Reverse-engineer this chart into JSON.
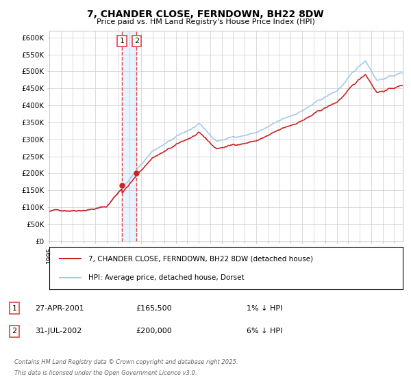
{
  "title": "7, CHANDER CLOSE, FERNDOWN, BH22 8DW",
  "subtitle": "Price paid vs. HM Land Registry's House Price Index (HPI)",
  "ylim": [
    0,
    620000
  ],
  "yticks": [
    0,
    50000,
    100000,
    150000,
    200000,
    250000,
    300000,
    350000,
    400000,
    450000,
    500000,
    550000,
    600000
  ],
  "xlim_start": 1995,
  "xlim_end": 2025.75,
  "hpi_color": "#a8c8e8",
  "price_color": "#cc2222",
  "vline_color": "#dd4444",
  "vfill_color": "#ddeeff",
  "legend_label_price": "7, CHANDER CLOSE, FERNDOWN, BH22 8DW (detached house)",
  "legend_label_hpi": "HPI: Average price, detached house, Dorset",
  "sale1_label": "1",
  "sale1_date": "27-APR-2001",
  "sale1_price": "£165,500",
  "sale1_note": "1% ↓ HPI",
  "sale1_year": 2001.32,
  "sale1_value": 165500,
  "sale2_label": "2",
  "sale2_date": "31-JUL-2002",
  "sale2_price": "£200,000",
  "sale2_note": "6% ↓ HPI",
  "sale2_year": 2002.58,
  "sale2_value": 200000,
  "footer_line1": "Contains HM Land Registry data © Crown copyright and database right 2025.",
  "footer_line2": "This data is licensed under the Open Government Licence v3.0.",
  "background_color": "#ffffff",
  "grid_color": "#cccccc"
}
